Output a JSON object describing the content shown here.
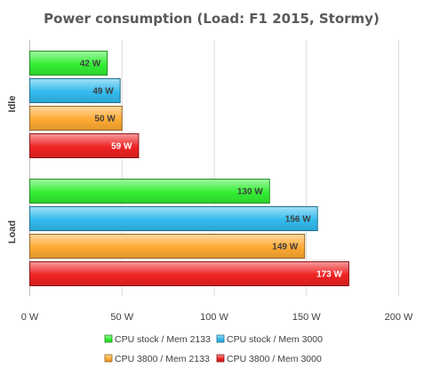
{
  "chart_data": {
    "type": "bar",
    "orientation": "horizontal",
    "title": "Power consumption (Load: F1 2015, Stormy)",
    "categories": [
      "Idle",
      "Load"
    ],
    "series": [
      {
        "name": "CPU stock / Mem 2133",
        "values": [
          42,
          130
        ],
        "labels": [
          "42 W",
          "130 W"
        ],
        "color": "#33ee33",
        "label_color": "#404040"
      },
      {
        "name": "CPU stock / Mem 3000",
        "values": [
          49,
          156
        ],
        "labels": [
          "49 W",
          "156 W"
        ],
        "color": "#33bbee",
        "label_color": "#404040"
      },
      {
        "name": "CPU 3800 / Mem 2133",
        "values": [
          50,
          149
        ],
        "labels": [
          "50 W",
          "149 W"
        ],
        "color": "#ffaa33",
        "label_color": "#404040"
      },
      {
        "name": "CPU 3800 / Mem 3000",
        "values": [
          59,
          173
        ],
        "labels": [
          "59 W",
          "173 W"
        ],
        "color": "#ee2222",
        "label_color": "#ffffff"
      }
    ],
    "xlim": [
      0,
      200
    ],
    "xticks": [
      0,
      50,
      100,
      150,
      200
    ],
    "xtick_labels": [
      "0 W",
      "50 W",
      "100 W",
      "150 W",
      "200 W"
    ],
    "xlabel": "",
    "ylabel": "",
    "grid": true,
    "legend_position": "bottom"
  }
}
